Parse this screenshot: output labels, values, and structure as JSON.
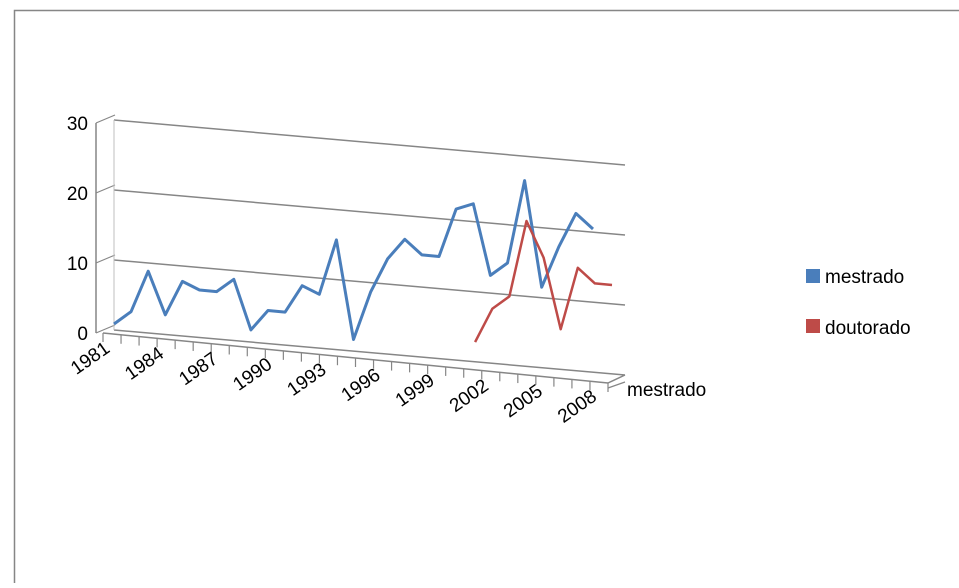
{
  "chart_data": {
    "type": "line",
    "title": "",
    "xlabel": "",
    "ylabel": "",
    "x": [
      1981,
      1982,
      1983,
      1984,
      1985,
      1986,
      1987,
      1988,
      1989,
      1990,
      1991,
      1992,
      1993,
      1994,
      1995,
      1996,
      1997,
      1998,
      1999,
      2000,
      2001,
      2002,
      2003,
      2004,
      2005,
      2006,
      2007,
      2008,
      2009
    ],
    "x_tick_labels": [
      "1981",
      "1984",
      "1987",
      "1990",
      "1993",
      "1996",
      "1999",
      "2002",
      "2005",
      "2008"
    ],
    "y_ticks": [
      "0",
      "10",
      "20",
      "30"
    ],
    "ylim": [
      0,
      30
    ],
    "grid": true,
    "depth_axis_label": "mestrado",
    "legend_position": "right",
    "series": [
      {
        "name": "mestrado",
        "color": "#4a7ebb",
        "values": [
          1,
          3,
          9,
          3,
          8,
          7,
          7,
          9,
          2,
          5,
          5,
          9,
          8,
          16,
          2,
          9,
          14,
          17,
          15,
          15,
          22,
          23,
          13,
          15,
          27,
          12,
          18,
          23,
          21
        ]
      },
      {
        "name": "doutorado",
        "color": "#be4b48",
        "values": [
          null,
          null,
          null,
          null,
          null,
          null,
          null,
          null,
          null,
          null,
          null,
          null,
          null,
          null,
          null,
          null,
          null,
          null,
          null,
          null,
          2,
          7,
          9,
          20,
          15,
          5,
          14,
          12,
          12
        ]
      }
    ]
  }
}
